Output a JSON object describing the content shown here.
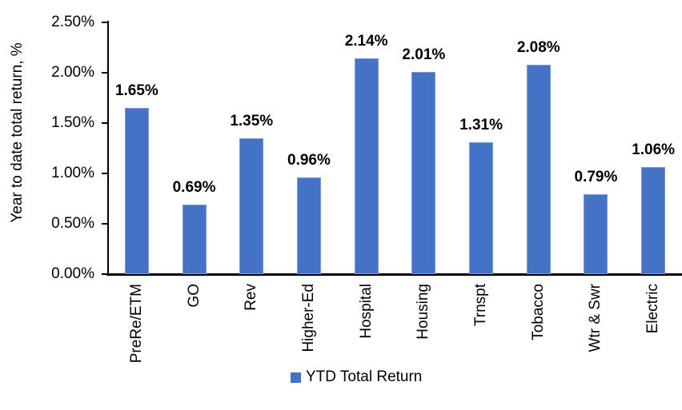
{
  "chart_data": {
    "type": "bar",
    "title": "",
    "ylabel": "Year to date total return, %",
    "xlabel": "",
    "categories": [
      "PreRe/ETM",
      "GO",
      "Rev",
      "Higher-Ed",
      "Hospital",
      "Housing",
      "Trnspt",
      "Tobacco",
      "Wtr & Swr",
      "Electric"
    ],
    "values": [
      1.65,
      0.69,
      1.35,
      0.96,
      2.14,
      2.01,
      1.31,
      2.08,
      0.79,
      1.06
    ],
    "data_labels": [
      "1.65%",
      "0.69%",
      "1.35%",
      "0.96%",
      "2.14%",
      "2.01%",
      "1.31%",
      "2.08%",
      "0.79%",
      "1.06%"
    ],
    "y_tick_labels": [
      "0.00%",
      "0.50%",
      "1.00%",
      "1.50%",
      "2.00%",
      "2.50%"
    ],
    "y_tick_values": [
      0,
      0.5,
      1.0,
      1.5,
      2.0,
      2.5
    ],
    "ylim": [
      0,
      2.5
    ],
    "grid": false,
    "legend": {
      "label": "YTD Total Return",
      "position": "bottom"
    },
    "colors": {
      "bar_fill": "#4472C4",
      "bar_border": "#7C9BD9",
      "axis": "#000000",
      "text": "#000000"
    }
  }
}
